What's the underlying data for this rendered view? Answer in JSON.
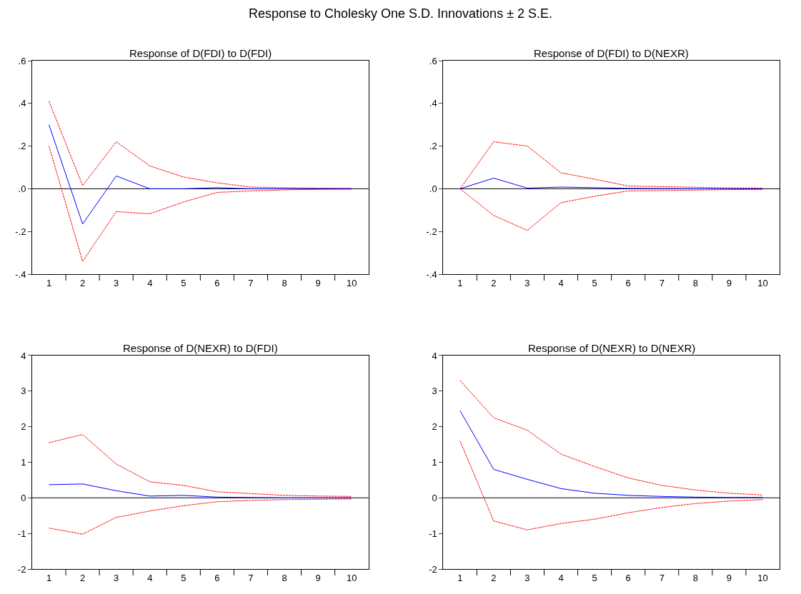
{
  "chart_data": [
    {
      "type": "line",
      "title": "Response to Cholesky One S.D. Innovations ± 2 S.E.",
      "subtitle": "Response of D(FDI) to D(FDI)",
      "categories": [
        "1",
        "2",
        "3",
        "4",
        "5",
        "6",
        "7",
        "8",
        "9",
        "10"
      ],
      "ylim": [
        -0.4,
        0.6
      ],
      "yticks": [
        {
          "value": -0.4,
          "label": "-.4"
        },
        {
          "value": -0.2,
          "label": "-.2"
        },
        {
          "value": 0,
          "label": ".0"
        },
        {
          "value": 0.2,
          "label": ".2"
        },
        {
          "value": 0.4,
          "label": ".4"
        },
        {
          "value": 0.6,
          "label": ".6"
        }
      ],
      "ref_lines": [
        {
          "axis": "y",
          "value": 0,
          "color": "#000000"
        }
      ],
      "series": [
        {
          "color": "#ff0000",
          "line_style": "dashed",
          "values": [
            0.41,
            0.015,
            0.22,
            0.107,
            0.055,
            0.028,
            0.008,
            0.005,
            0.003,
            0.002
          ]
        },
        {
          "color": "#ff0000",
          "line_style": "dashed",
          "values": [
            0.2,
            -0.34,
            -0.107,
            -0.117,
            -0.062,
            -0.017,
            -0.01,
            -0.005,
            -0.003,
            -0.002
          ]
        },
        {
          "color": "#0000ff",
          "line_style": "solid",
          "values": [
            0.3,
            -0.165,
            0.06,
            0.0,
            0.0,
            0.005,
            0.0,
            0.0,
            0.0,
            0.0
          ]
        }
      ]
    },
    {
      "type": "line",
      "subtitle": "Response of D(FDI) to D(NEXR)",
      "categories": [
        "1",
        "2",
        "3",
        "4",
        "5",
        "6",
        "7",
        "8",
        "9",
        "10"
      ],
      "ylim": [
        -0.4,
        0.6
      ],
      "yticks": [
        {
          "value": -0.4,
          "label": "-.4"
        },
        {
          "value": -0.2,
          "label": "-.2"
        },
        {
          "value": 0,
          "label": ".0"
        },
        {
          "value": 0.2,
          "label": ".2"
        },
        {
          "value": 0.4,
          "label": ".4"
        },
        {
          "value": 0.6,
          "label": ".6"
        }
      ],
      "ref_lines": [
        {
          "axis": "y",
          "value": 0,
          "color": "#000000"
        }
      ],
      "series": [
        {
          "color": "#ff0000",
          "line_style": "dashed",
          "values": [
            0.0,
            0.22,
            0.2,
            0.075,
            0.045,
            0.013,
            0.01,
            0.007,
            0.004,
            0.003
          ]
        },
        {
          "color": "#ff0000",
          "line_style": "dashed",
          "values": [
            0.0,
            -0.125,
            -0.195,
            -0.065,
            -0.035,
            -0.01,
            -0.008,
            -0.006,
            -0.004,
            -0.003
          ]
        },
        {
          "color": "#0000ff",
          "line_style": "solid",
          "values": [
            0.0,
            0.05,
            0.003,
            0.008,
            0.005,
            0.002,
            0.001,
            0.0,
            0.0,
            0.0
          ]
        }
      ]
    },
    {
      "type": "line",
      "subtitle": "Response of D(NEXR) to D(FDI)",
      "categories": [
        "1",
        "2",
        "3",
        "4",
        "5",
        "6",
        "7",
        "8",
        "9",
        "10"
      ],
      "ylim": [
        -2,
        4
      ],
      "yticks": [
        -2,
        -1,
        0,
        1,
        2,
        3,
        4
      ],
      "ref_lines": [
        {
          "axis": "y",
          "value": 0,
          "color": "#000000"
        }
      ],
      "series": [
        {
          "color": "#ff0000",
          "line_style": "dashed",
          "values": [
            1.55,
            1.78,
            0.95,
            0.45,
            0.35,
            0.17,
            0.12,
            0.07,
            0.05,
            0.04
          ]
        },
        {
          "color": "#ff0000",
          "line_style": "dashed",
          "values": [
            -0.85,
            -1.02,
            -0.55,
            -0.37,
            -0.22,
            -0.11,
            -0.07,
            -0.05,
            -0.04,
            -0.03
          ]
        },
        {
          "color": "#0000ff",
          "line_style": "solid",
          "values": [
            0.37,
            0.39,
            0.2,
            0.05,
            0.07,
            0.02,
            0.01,
            0.0,
            0.0,
            0.0
          ]
        }
      ]
    },
    {
      "type": "line",
      "subtitle": "Response of D(NEXR) to D(NEXR)",
      "categories": [
        "1",
        "2",
        "3",
        "4",
        "5",
        "6",
        "7",
        "8",
        "9",
        "10"
      ],
      "ylim": [
        -2,
        4
      ],
      "yticks": [
        -2,
        -1,
        0,
        1,
        2,
        3,
        4
      ],
      "ref_lines": [
        {
          "axis": "y",
          "value": 0,
          "color": "#000000"
        }
      ],
      "series": [
        {
          "color": "#ff0000",
          "line_style": "dashed",
          "values": [
            3.3,
            2.25,
            1.9,
            1.23,
            0.88,
            0.56,
            0.35,
            0.22,
            0.13,
            0.08
          ]
        },
        {
          "color": "#ff0000",
          "line_style": "dashed",
          "values": [
            1.6,
            -0.65,
            -0.9,
            -0.72,
            -0.6,
            -0.42,
            -0.27,
            -0.16,
            -0.09,
            -0.05
          ]
        },
        {
          "color": "#0000ff",
          "line_style": "solid",
          "values": [
            2.45,
            0.8,
            0.52,
            0.26,
            0.13,
            0.07,
            0.04,
            0.02,
            0.01,
            0.01
          ]
        }
      ]
    }
  ]
}
